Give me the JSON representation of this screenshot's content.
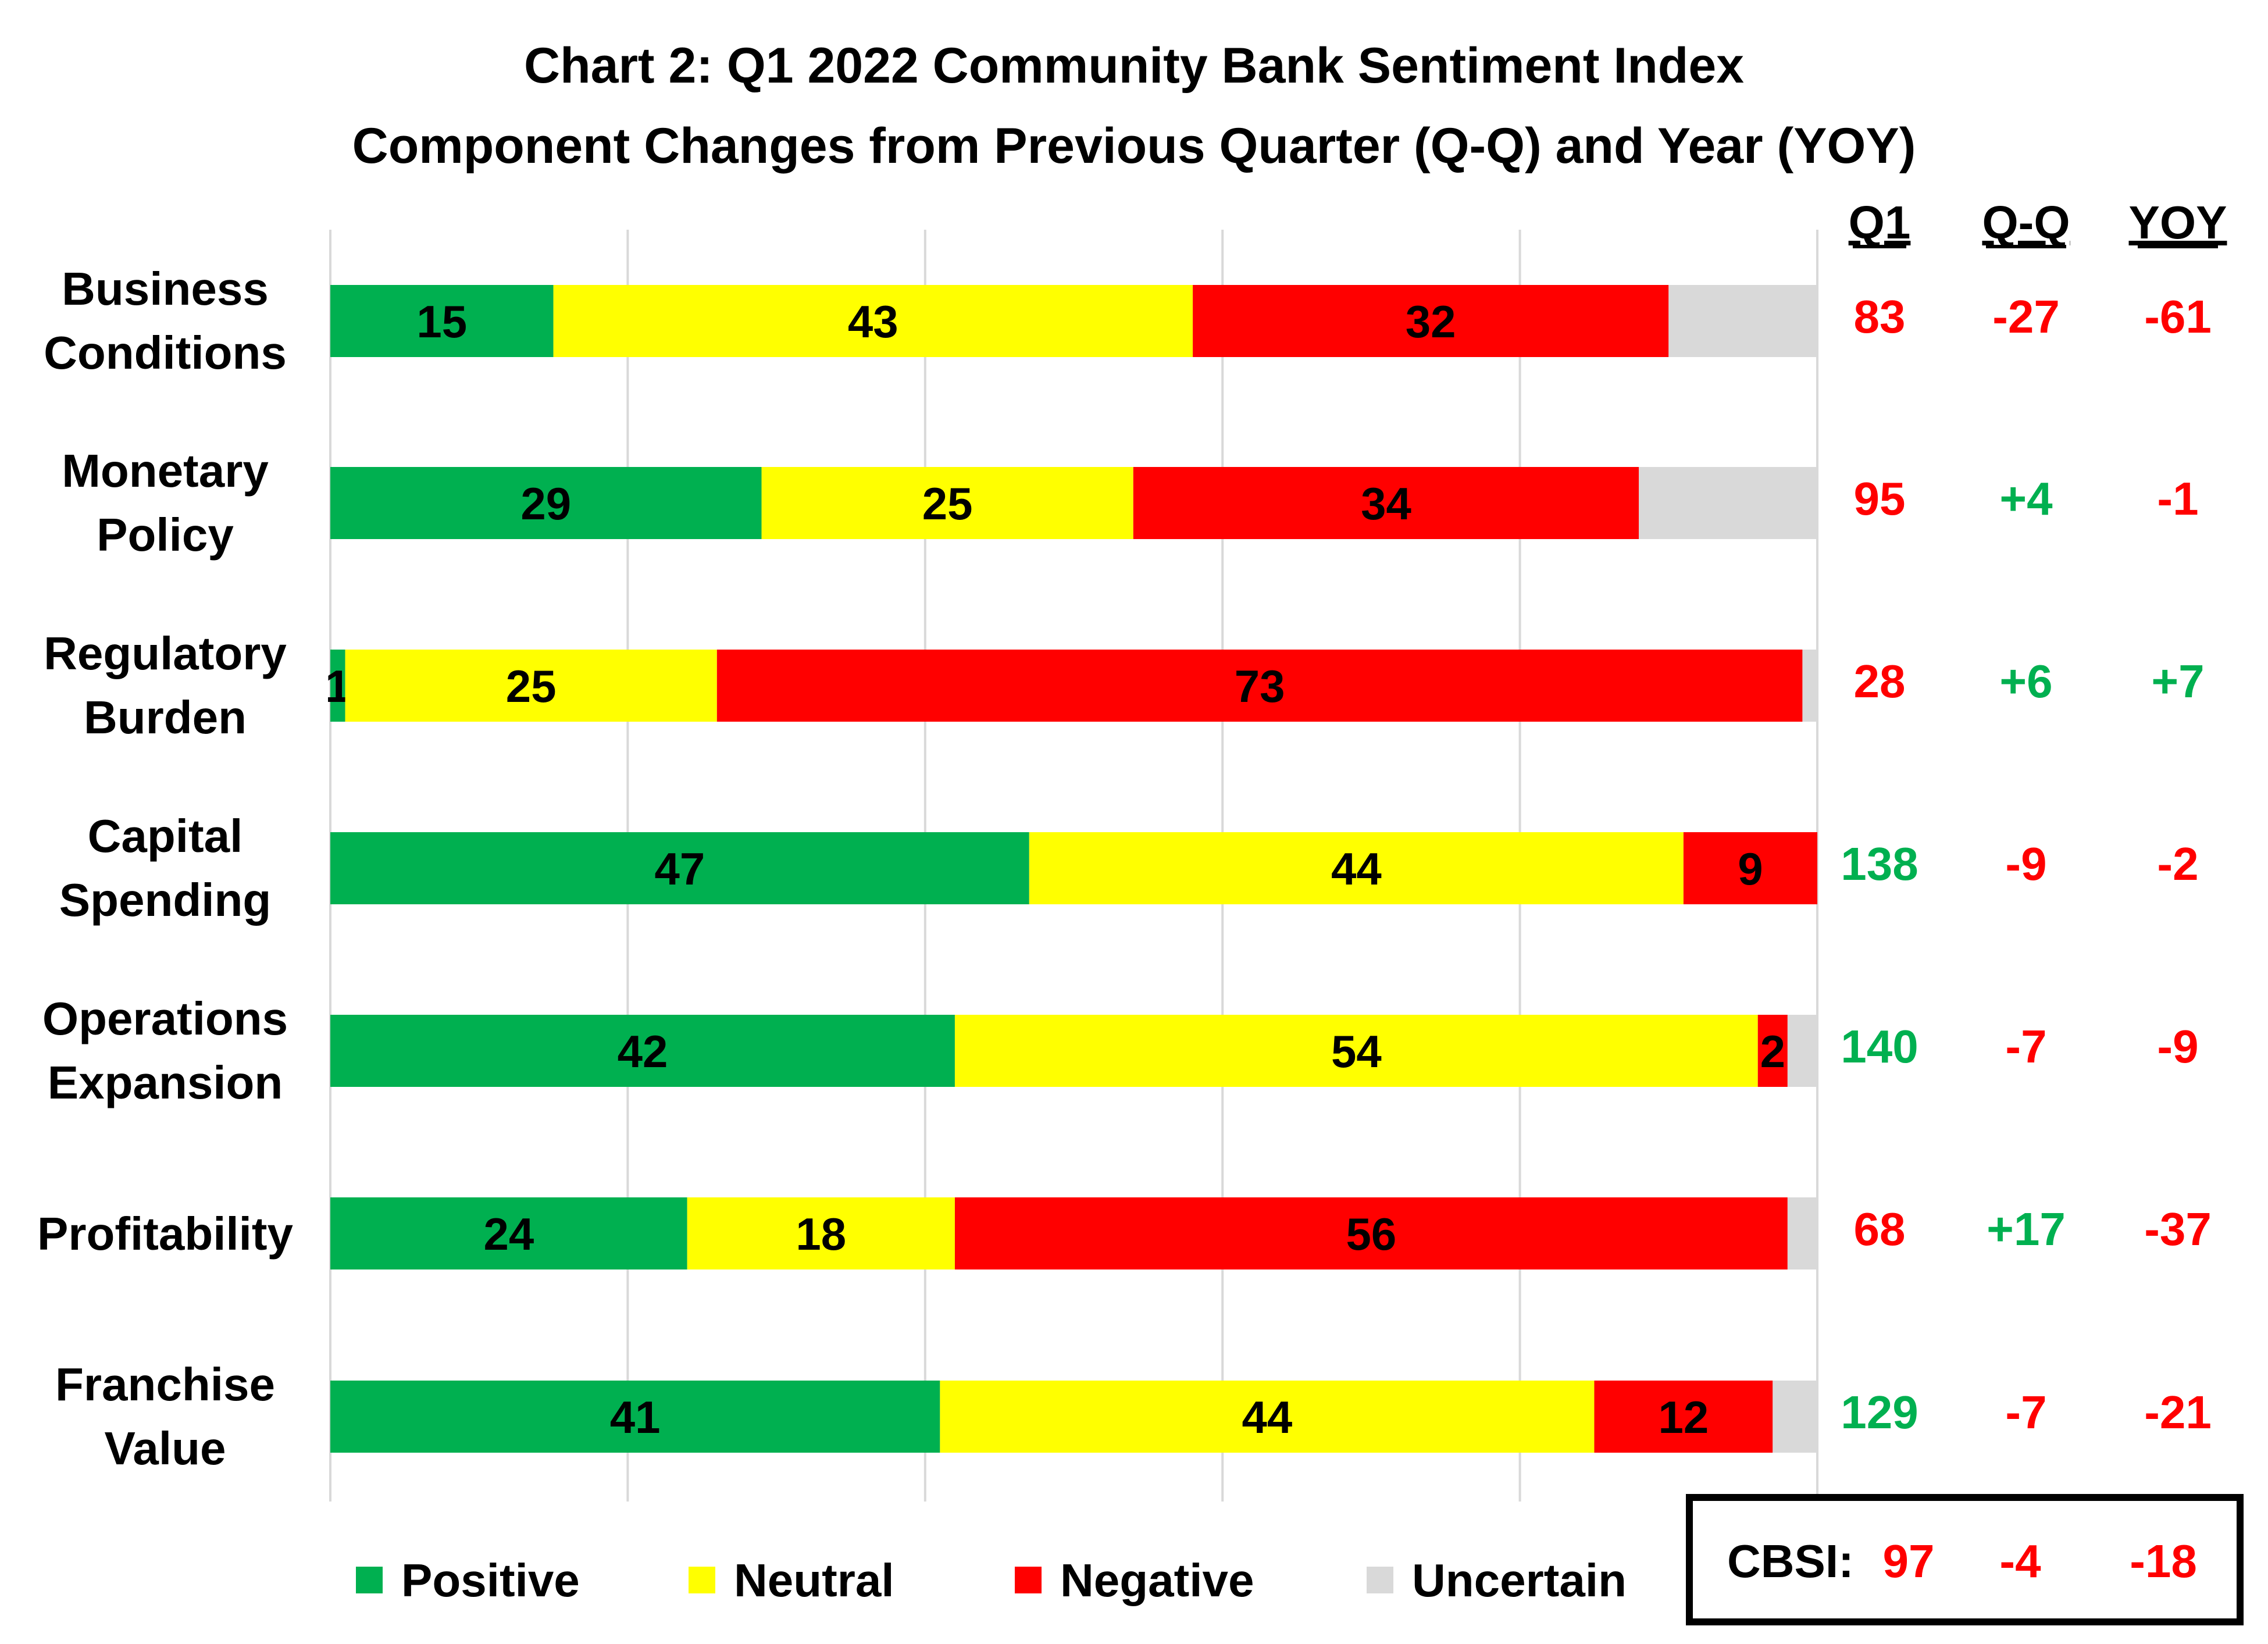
{
  "chart_data": {
    "type": "bar",
    "orientation": "horizontal",
    "stacked": true,
    "title": "Chart 2: Q1 2022 Community Bank Sentiment Index",
    "subtitle": "Component Changes from Previous Quarter (Q-Q) and Year (YOY)",
    "categories": [
      "Business Conditions",
      "Monetary Policy",
      "Regulatory Burden",
      "Capital Spending",
      "Operations Expansion",
      "Profitability",
      "Franchise Value"
    ],
    "series": [
      {
        "name": "Positive",
        "color": "#00b050",
        "values": [
          15,
          29,
          1,
          47,
          42,
          24,
          41
        ],
        "labels": [
          "15",
          "29",
          "1",
          "47",
          "42",
          "24",
          "41"
        ]
      },
      {
        "name": "Neutral",
        "color": "#ffff00",
        "values": [
          43,
          25,
          25,
          44,
          54,
          18,
          44
        ],
        "labels": [
          "43",
          "25",
          "25",
          "44",
          "54",
          "18",
          "44"
        ]
      },
      {
        "name": "Negative",
        "color": "#ff0000",
        "values": [
          32,
          34,
          73,
          9,
          2,
          56,
          12
        ],
        "labels": [
          "32",
          "34",
          "73",
          "9",
          "2",
          "56",
          "12"
        ]
      },
      {
        "name": "Uncertain",
        "color": "#d9d9d9",
        "values": [
          10,
          12,
          1,
          0,
          2,
          2,
          3
        ],
        "labels": [
          "",
          "",
          "",
          "",
          "",
          "",
          ""
        ]
      }
    ],
    "xlim": [
      0,
      100
    ],
    "grid": true,
    "legend_position": "bottom",
    "side_table": {
      "headers": [
        "Q1",
        "Q-Q",
        "YOY"
      ],
      "rows": [
        [
          {
            "text": "83",
            "color": "#ff0000"
          },
          {
            "text": "-27",
            "color": "#ff0000"
          },
          {
            "text": "-61",
            "color": "#ff0000"
          }
        ],
        [
          {
            "text": "95",
            "color": "#ff0000"
          },
          {
            "text": "+4",
            "color": "#00b050"
          },
          {
            "text": "-1",
            "color": "#ff0000"
          }
        ],
        [
          {
            "text": "28",
            "color": "#ff0000"
          },
          {
            "text": "+6",
            "color": "#00b050"
          },
          {
            "text": "+7",
            "color": "#00b050"
          }
        ],
        [
          {
            "text": "138",
            "color": "#00b050"
          },
          {
            "text": "-9",
            "color": "#ff0000"
          },
          {
            "text": "-2",
            "color": "#ff0000"
          }
        ],
        [
          {
            "text": "140",
            "color": "#00b050"
          },
          {
            "text": "-7",
            "color": "#ff0000"
          },
          {
            "text": "-9",
            "color": "#ff0000"
          }
        ],
        [
          {
            "text": "68",
            "color": "#ff0000"
          },
          {
            "text": "+17",
            "color": "#00b050"
          },
          {
            "text": "-37",
            "color": "#ff0000"
          }
        ],
        [
          {
            "text": "129",
            "color": "#00b050"
          },
          {
            "text": "-7",
            "color": "#ff0000"
          },
          {
            "text": "-21",
            "color": "#ff0000"
          }
        ]
      ]
    },
    "summary_box": {
      "label": "CBSI:",
      "values": [
        {
          "text": "97",
          "color": "#ff0000"
        },
        {
          "text": "-4",
          "color": "#ff0000"
        },
        {
          "text": "-18",
          "color": "#ff0000"
        }
      ]
    }
  }
}
